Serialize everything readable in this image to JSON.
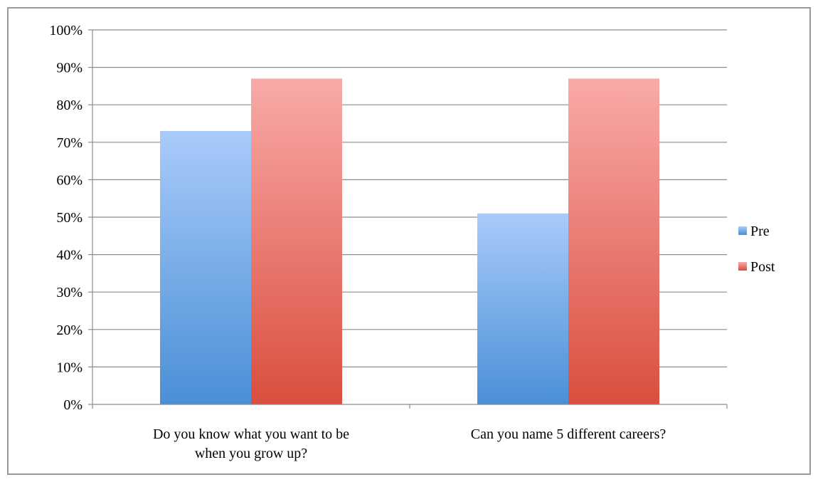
{
  "chart_data": {
    "type": "bar",
    "categories": [
      [
        "Do you know what you want to be",
        "when you grow up?"
      ],
      [
        "Can you name 5 different careers?"
      ]
    ],
    "series": [
      {
        "name": "Pre",
        "values": [
          73,
          51
        ],
        "color_top": "#a9cbfa",
        "color_bottom": "#4a8fd6"
      },
      {
        "name": "Post",
        "values": [
          87,
          87
        ],
        "color_top": "#f9aaa8",
        "color_bottom": "#da4e3e"
      }
    ],
    "ylim": [
      0,
      100
    ],
    "yticks": [
      "0%",
      "10%",
      "20%",
      "30%",
      "40%",
      "50%",
      "60%",
      "70%",
      "80%",
      "90%",
      "100%"
    ],
    "grid": true,
    "legend_position": "right"
  }
}
